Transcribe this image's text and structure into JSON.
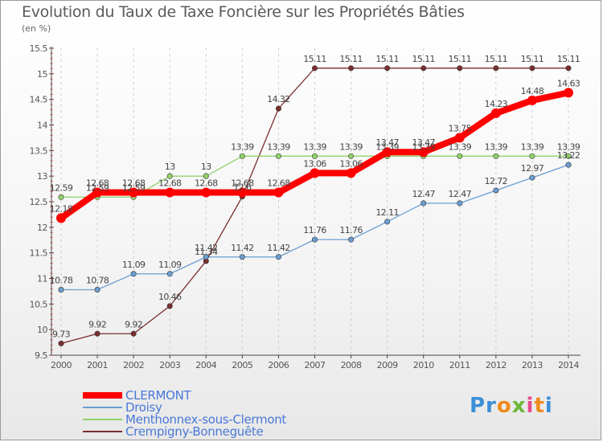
{
  "header": {
    "title": "Evolution du Taux de Taxe Foncière sur les Propriétés Bâties",
    "unit": "(en %)"
  },
  "logo": {
    "text": "Proxiti"
  },
  "colors": {
    "clermont": "#ff0000",
    "droisy": "#6a9fd2",
    "menthonnex": "#92d16a",
    "crempigny": "#7a2e2e",
    "axis": "#444444",
    "grid": "#cccccc"
  },
  "chart_data": {
    "type": "line",
    "title": "Evolution du Taux de Taxe Foncière sur les Propriétés Bâties",
    "ylabel": "(en %)",
    "xlabel": "",
    "ylim": [
      9.5,
      15.5
    ],
    "yticks": [
      "9.5",
      "10",
      "10.5",
      "11",
      "11.5",
      "12",
      "12.5",
      "13",
      "13.5",
      "14",
      "14.5",
      "15",
      "15.5"
    ],
    "x": [
      "2000",
      "2001",
      "2002",
      "2003",
      "2004",
      "2005",
      "2006",
      "2007",
      "2008",
      "2009",
      "2010",
      "2011",
      "2012",
      "2013",
      "2014"
    ],
    "legend_position": "bottom-left",
    "series": [
      {
        "key": "clermont",
        "name": "CLERMONT",
        "values": [
          12.18,
          12.68,
          12.68,
          12.68,
          12.68,
          12.68,
          12.68,
          13.06,
          13.06,
          13.47,
          13.47,
          13.75,
          14.23,
          14.48,
          14.63
        ],
        "labels": [
          "12.18",
          "12.68",
          "12.68",
          "12.68",
          "12.68",
          "12.68",
          "12.68",
          "13.06",
          "13.06",
          "13.47",
          "13.47",
          "13.75",
          "14.23",
          "14.48",
          "14.63"
        ]
      },
      {
        "key": "droisy",
        "name": "Droisy",
        "values": [
          10.78,
          10.78,
          11.09,
          11.09,
          11.42,
          11.42,
          11.42,
          11.76,
          11.76,
          12.11,
          12.47,
          12.47,
          12.72,
          12.97,
          13.22
        ],
        "labels": [
          "10.78",
          "10.78",
          "11.09",
          "11.09",
          "11.42",
          "11.42",
          "11.42",
          "11.76",
          "11.76",
          "12.11",
          "12.47",
          "12.47",
          "12.72",
          "12.97",
          "13.22"
        ]
      },
      {
        "key": "menthonnex",
        "name": "Menthonnex-sous-Clermont",
        "values": [
          12.59,
          12.59,
          12.59,
          13,
          13,
          13.39,
          13.39,
          13.39,
          13.39,
          13.39,
          13.39,
          13.39,
          13.39,
          13.39,
          13.39
        ],
        "labels": [
          "12.59",
          "12.59",
          "12.59",
          "13",
          "13",
          "13.39",
          "13.39",
          "13.39",
          "13.39",
          "13.39",
          "13.39",
          "13.39",
          "13.39",
          "13.39",
          "13.39"
        ]
      },
      {
        "key": "crempigny",
        "name": "Crempigny-Bonneguête",
        "values": [
          9.73,
          9.92,
          9.92,
          10.46,
          11.34,
          12.6,
          14.32,
          15.11,
          15.11,
          15.11,
          15.11,
          15.11,
          15.11,
          15.11,
          15.11
        ],
        "labels": [
          "9.73",
          "9.92",
          "9.92",
          "10.46",
          "11.34",
          "12.6",
          "14.32",
          "15.11",
          "15.11",
          "15.11",
          "15.11",
          "15.11",
          "15.11",
          "15.11",
          "15.11"
        ]
      }
    ]
  }
}
